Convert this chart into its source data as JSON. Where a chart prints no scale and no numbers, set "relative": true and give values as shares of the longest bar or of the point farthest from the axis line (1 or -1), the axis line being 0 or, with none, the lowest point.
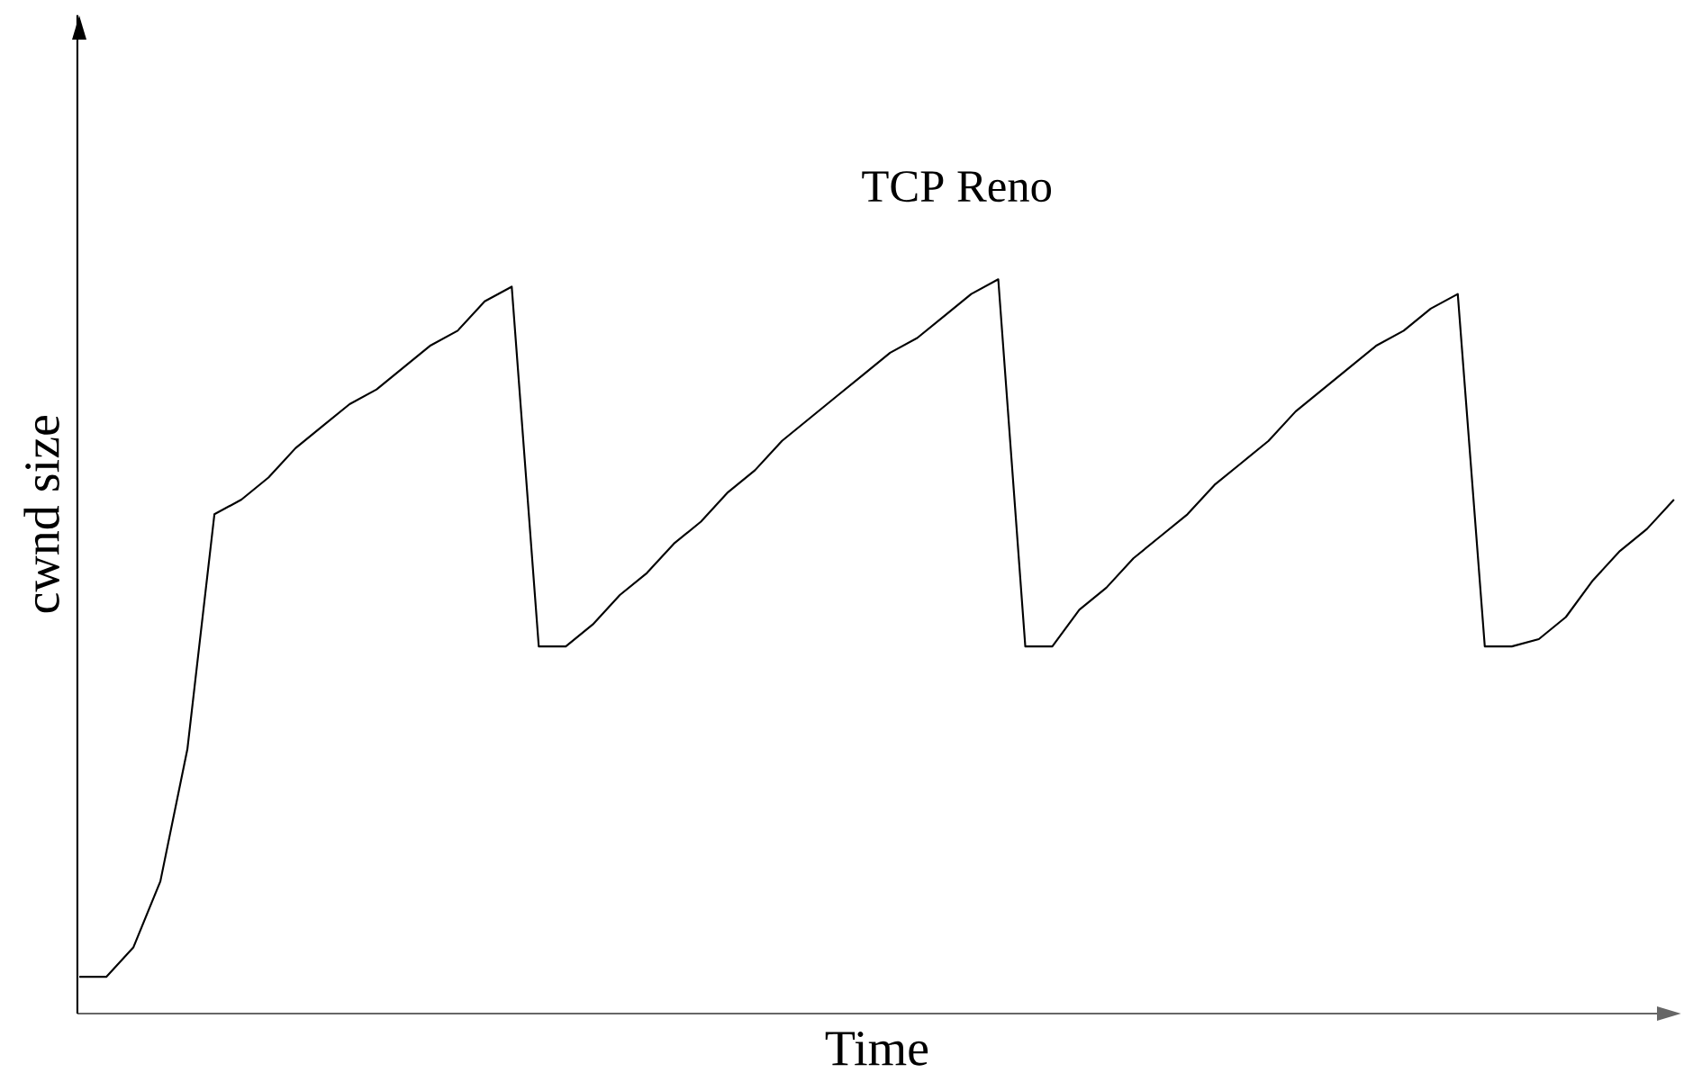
{
  "chart_data": {
    "type": "line",
    "title": "TCP Reno",
    "xlabel": "Time",
    "ylabel": "cwnd size",
    "relative": true,
    "categories": [
      null,
      null,
      null,
      null,
      null,
      null,
      null,
      null,
      null,
      null,
      null,
      null,
      null,
      null,
      null,
      null,
      null,
      null,
      null,
      null,
      null,
      null,
      null,
      null,
      null,
      null,
      null,
      null,
      null,
      null,
      null,
      null,
      null,
      null,
      null,
      null,
      null,
      null,
      null,
      null,
      null,
      null,
      null,
      null,
      null,
      null,
      null,
      null,
      null,
      null,
      null,
      null,
      null,
      null,
      null,
      null,
      null,
      null,
      null,
      null
    ],
    "series": [
      {
        "color": "#000000",
        "values": [
          0.05,
          0.05,
          0.09,
          0.18,
          0.36,
          0.68,
          0.7,
          0.73,
          0.77,
          0.8,
          0.83,
          0.85,
          0.88,
          0.91,
          0.93,
          0.97,
          0.99,
          0.5,
          0.5,
          0.53,
          0.57,
          0.6,
          0.64,
          0.67,
          0.71,
          0.74,
          0.78,
          0.81,
          0.84,
          0.87,
          0.9,
          0.92,
          0.95,
          0.98,
          1.0,
          0.5,
          0.5,
          0.55,
          0.58,
          0.62,
          0.65,
          0.68,
          0.72,
          0.75,
          0.78,
          0.82,
          0.85,
          0.88,
          0.91,
          0.93,
          0.96,
          0.98,
          0.5,
          0.5,
          0.51,
          0.54,
          0.59,
          0.63,
          0.66,
          0.7
        ]
      }
    ]
  }
}
